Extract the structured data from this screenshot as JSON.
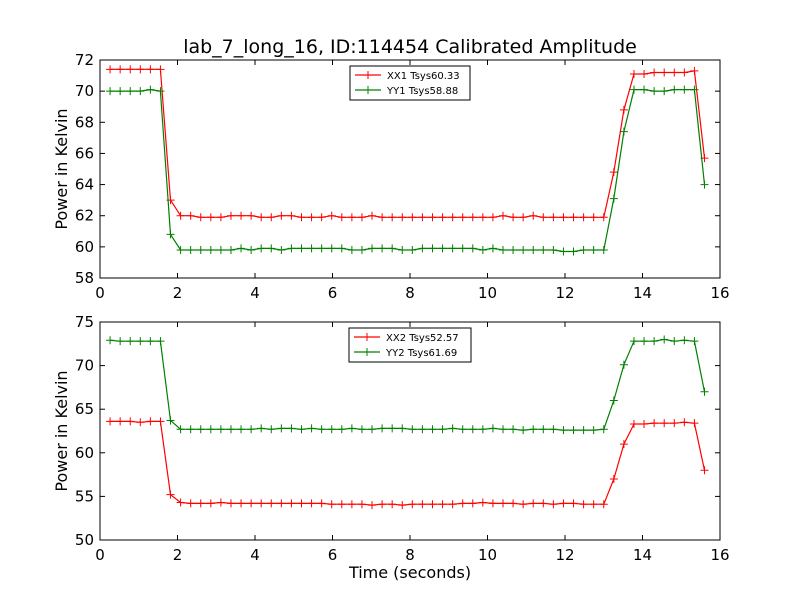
{
  "figure": {
    "title": "lab_7_long_16, ID:114454 Calibrated Amplitude",
    "xlabel": "Time (seconds)"
  },
  "chart_data": [
    {
      "type": "line",
      "ylabel": "Power in Kelvin",
      "xlim": [
        0,
        16
      ],
      "ylim": [
        58,
        72
      ],
      "xticks": [
        "0",
        "2",
        "4",
        "6",
        "8",
        "10",
        "12",
        "14",
        "16"
      ],
      "yticks": [
        "58",
        "60",
        "62",
        "64",
        "66",
        "68",
        "70",
        "72"
      ],
      "legend_position": "top-center",
      "x": [
        0.26,
        0.52,
        0.78,
        1.04,
        1.3,
        1.56,
        1.82,
        2.08,
        2.34,
        2.6,
        2.86,
        3.12,
        3.38,
        3.64,
        3.9,
        4.16,
        4.42,
        4.68,
        4.94,
        5.2,
        5.46,
        5.72,
        5.98,
        6.24,
        6.5,
        6.76,
        7.02,
        7.28,
        7.54,
        7.8,
        8.06,
        8.32,
        8.58,
        8.84,
        9.1,
        9.36,
        9.62,
        9.88,
        10.14,
        10.4,
        10.66,
        10.92,
        11.18,
        11.44,
        11.7,
        11.96,
        12.22,
        12.48,
        12.74,
        13.0,
        13.26,
        13.52,
        13.78,
        14.04,
        14.3,
        14.56,
        14.82,
        15.08,
        15.34,
        15.6
      ],
      "series": [
        {
          "name": "XX1 Tsys60.33",
          "color": "#ff0000",
          "values": [
            71.4,
            71.4,
            71.4,
            71.4,
            71.4,
            71.4,
            63.0,
            62.0,
            62.0,
            61.9,
            61.9,
            61.9,
            62.0,
            62.0,
            62.0,
            61.9,
            61.9,
            62.0,
            62.0,
            61.9,
            61.9,
            61.9,
            62.0,
            61.9,
            61.9,
            61.9,
            62.0,
            61.9,
            61.9,
            61.9,
            61.9,
            61.9,
            61.9,
            61.9,
            61.9,
            61.9,
            61.9,
            61.9,
            61.9,
            62.0,
            61.9,
            61.9,
            62.0,
            61.9,
            61.9,
            61.9,
            61.9,
            61.9,
            61.9,
            61.9,
            64.8,
            68.8,
            71.1,
            71.1,
            71.2,
            71.2,
            71.2,
            71.2,
            71.3,
            65.7
          ]
        },
        {
          "name": "YY1 Tsys58.88",
          "color": "#008000",
          "values": [
            70.0,
            70.0,
            70.0,
            70.0,
            70.1,
            70.0,
            60.8,
            59.8,
            59.8,
            59.8,
            59.8,
            59.8,
            59.8,
            59.9,
            59.8,
            59.9,
            59.9,
            59.8,
            59.9,
            59.9,
            59.9,
            59.9,
            59.9,
            59.9,
            59.8,
            59.8,
            59.9,
            59.9,
            59.9,
            59.8,
            59.8,
            59.9,
            59.9,
            59.9,
            59.9,
            59.9,
            59.9,
            59.8,
            59.9,
            59.8,
            59.8,
            59.8,
            59.8,
            59.8,
            59.8,
            59.7,
            59.7,
            59.8,
            59.8,
            59.8,
            63.1,
            67.4,
            70.1,
            70.1,
            70.0,
            70.0,
            70.1,
            70.1,
            70.1,
            64.0
          ]
        }
      ]
    },
    {
      "type": "line",
      "ylabel": "Power in Kelvin",
      "xlim": [
        0,
        16
      ],
      "ylim": [
        50,
        75
      ],
      "xticks": [
        "0",
        "2",
        "4",
        "6",
        "8",
        "10",
        "12",
        "14",
        "16"
      ],
      "yticks": [
        "50",
        "55",
        "60",
        "65",
        "70",
        "75"
      ],
      "legend_position": "top-center",
      "x": [
        0.26,
        0.52,
        0.78,
        1.04,
        1.3,
        1.56,
        1.82,
        2.08,
        2.34,
        2.6,
        2.86,
        3.12,
        3.38,
        3.64,
        3.9,
        4.16,
        4.42,
        4.68,
        4.94,
        5.2,
        5.46,
        5.72,
        5.98,
        6.24,
        6.5,
        6.76,
        7.02,
        7.28,
        7.54,
        7.8,
        8.06,
        8.32,
        8.58,
        8.84,
        9.1,
        9.36,
        9.62,
        9.88,
        10.14,
        10.4,
        10.66,
        10.92,
        11.18,
        11.44,
        11.7,
        11.96,
        12.22,
        12.48,
        12.74,
        13.0,
        13.26,
        13.52,
        13.78,
        14.04,
        14.3,
        14.56,
        14.82,
        15.08,
        15.34,
        15.6
      ],
      "series": [
        {
          "name": "XX2 Tsys52.57",
          "color": "#ff0000",
          "values": [
            63.6,
            63.6,
            63.6,
            63.5,
            63.6,
            63.6,
            55.2,
            54.3,
            54.2,
            54.2,
            54.2,
            54.3,
            54.2,
            54.2,
            54.2,
            54.2,
            54.2,
            54.2,
            54.2,
            54.2,
            54.2,
            54.2,
            54.1,
            54.1,
            54.1,
            54.1,
            54.0,
            54.1,
            54.1,
            54.0,
            54.1,
            54.1,
            54.1,
            54.1,
            54.1,
            54.2,
            54.2,
            54.3,
            54.2,
            54.2,
            54.2,
            54.1,
            54.2,
            54.2,
            54.1,
            54.2,
            54.2,
            54.1,
            54.1,
            54.1,
            57.0,
            61.0,
            63.3,
            63.3,
            63.4,
            63.4,
            63.4,
            63.5,
            63.4,
            58.0
          ]
        },
        {
          "name": "YY2 Tsys61.69",
          "color": "#008000",
          "values": [
            72.9,
            72.8,
            72.8,
            72.8,
            72.8,
            72.8,
            63.7,
            62.7,
            62.7,
            62.7,
            62.7,
            62.7,
            62.7,
            62.7,
            62.7,
            62.8,
            62.7,
            62.8,
            62.8,
            62.7,
            62.8,
            62.7,
            62.7,
            62.7,
            62.8,
            62.7,
            62.7,
            62.8,
            62.8,
            62.8,
            62.7,
            62.7,
            62.7,
            62.7,
            62.8,
            62.7,
            62.7,
            62.7,
            62.8,
            62.7,
            62.7,
            62.6,
            62.7,
            62.7,
            62.7,
            62.6,
            62.6,
            62.6,
            62.6,
            62.7,
            66.0,
            70.1,
            72.8,
            72.8,
            72.8,
            73.0,
            72.8,
            72.9,
            72.8,
            67.0
          ]
        }
      ]
    }
  ]
}
